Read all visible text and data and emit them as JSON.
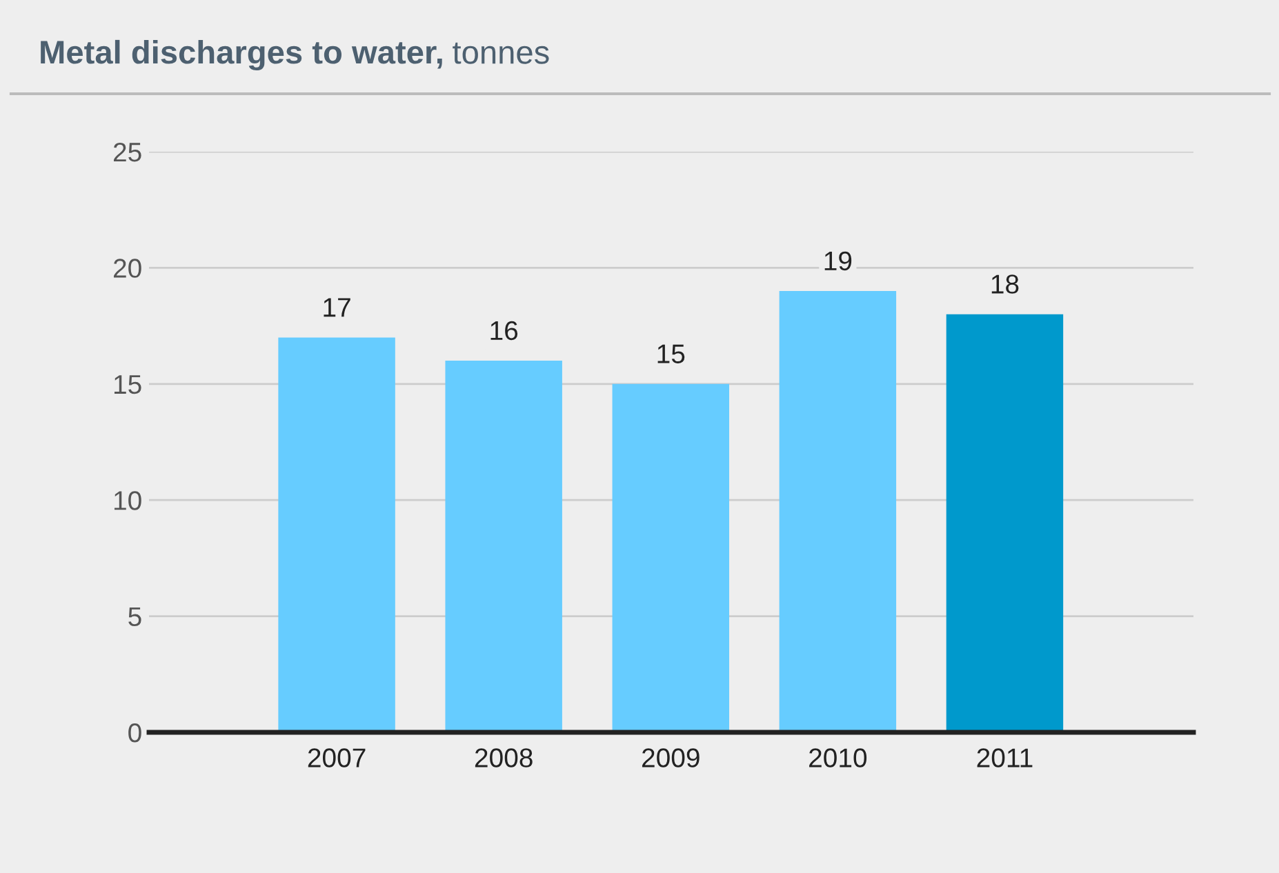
{
  "chart_data": {
    "type": "bar",
    "title": "Metal discharges to water,",
    "subtitle": "tonnes",
    "categories": [
      "2007",
      "2008",
      "2009",
      "2010",
      "2011"
    ],
    "values": [
      17,
      16,
      15,
      19,
      18
    ],
    "colors": [
      "#66ccff",
      "#66ccff",
      "#66ccff",
      "#66ccff",
      "#0099cc"
    ],
    "ylim": [
      0,
      25
    ],
    "yticks": [
      0,
      5,
      10,
      15,
      20,
      25
    ],
    "grid": "y",
    "data_labels": true,
    "legend": false
  }
}
